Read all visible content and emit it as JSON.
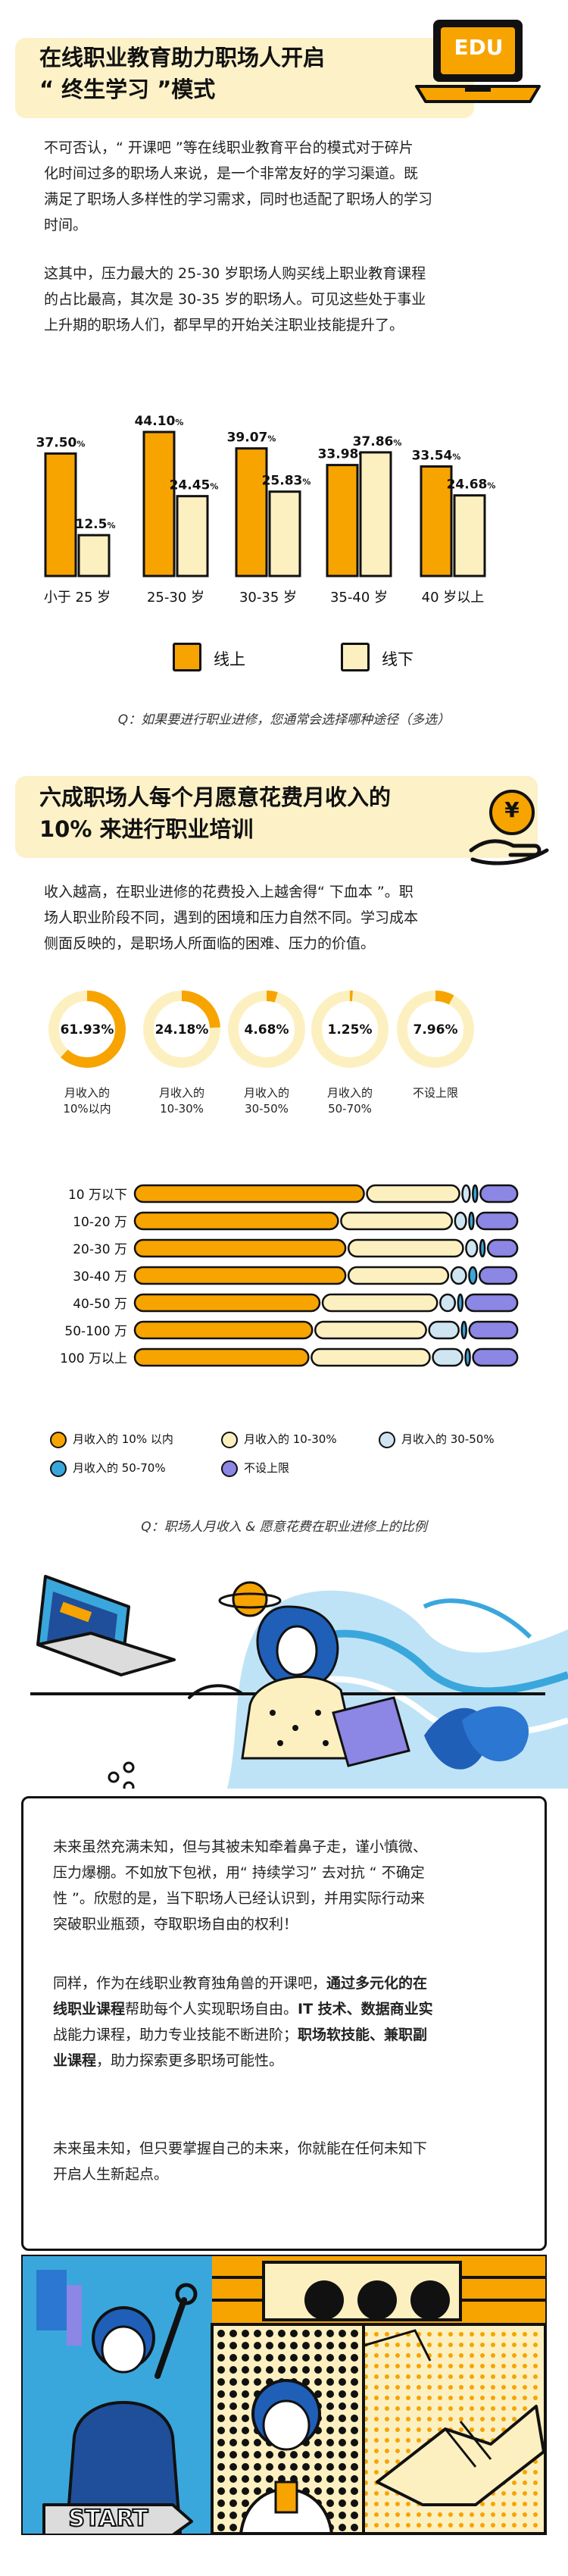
{
  "header1": {
    "title_line1": "在线职业教育助力职场人开启",
    "title_line2": "“ 终生学习 ”模式",
    "badge": "EDU"
  },
  "intro": {
    "p1_line1": "不可否认，“  开课吧  ”等在线职业教育平台的模式对于碎片",
    "p1_line2": "化时间过多的职场人来说，是一个非常友好的学习渠道。既",
    "p1_line3": "满足了职场人多样性的学习需求，同时也适配了职场人的学习",
    "p1_line4": "时间。",
    "p2_line1": "这其中，压力最大的  25-30  岁职场人购买线上职业教育课程",
    "p2_line2": "的占比最高，其次是  30-35  岁的职场人。可见这些处于事业",
    "p2_line3": "上升期的职场人们，都早早的开始关注职业技能提升了。"
  },
  "chart_data": [
    {
      "type": "bar",
      "categories": [
        "小于 25 岁",
        "25-30 岁",
        "30-35 岁",
        "35-40 岁",
        "40 岁以上"
      ],
      "series": [
        {
          "name": "线上",
          "values": [
            37.5,
            44.1,
            39.07,
            33.98,
            33.54
          ],
          "color": "#f7a400"
        },
        {
          "name": "线下",
          "values": [
            12.5,
            24.45,
            25.83,
            37.86,
            24.68
          ],
          "color": "#fdf0c0"
        }
      ],
      "value_labels": {
        "online": [
          "37.50",
          "44.10",
          "39.07",
          "33.98",
          "33.54"
        ],
        "offline": [
          "12.5",
          "24.45",
          "25.83",
          "37.86",
          "24.68"
        ]
      },
      "unit_suffix": "%",
      "ylim": [
        0,
        50
      ],
      "legend_position": "bottom",
      "caption": "Q：如果要进行职业进修，您通常会选择哪种途径（多选）"
    },
    {
      "type": "pie",
      "style": "donut",
      "categories": [
        "月收入的 10%以内",
        "月收入的 10-30%",
        "月收入的 30-50%",
        "月收入的 50-70%",
        "不设上限"
      ],
      "label_lines": [
        [
          "月收入的",
          "10%以内"
        ],
        [
          "月收入的",
          "10-30%"
        ],
        [
          "月收入的",
          "30-50%"
        ],
        [
          "月收入的",
          "50-70%"
        ],
        [
          "不设上限"
        ]
      ],
      "values": [
        61.93,
        24.18,
        4.68,
        1.25,
        7.96
      ],
      "value_labels": [
        "61.93%",
        "24.18%",
        "4.68%",
        "1.25%",
        "7.96%"
      ]
    },
    {
      "type": "bar",
      "orientation": "horizontal",
      "stacked": true,
      "normalized": true,
      "categories": [
        "10 万以下",
        "10-20 万",
        "20-30 万",
        "30-40 万",
        "40-50 万",
        "50-100 万",
        "100 万以上"
      ],
      "series": [
        {
          "name": "月收入的 10% 以内",
          "values": [
            62,
            55,
            57,
            57,
            50,
            48,
            47
          ],
          "color": "#f7a400"
        },
        {
          "name": "月收入的 10-30%",
          "values": [
            25,
            30,
            31,
            27,
            31,
            30,
            32
          ],
          "color": "#fdf0c0"
        },
        {
          "name": "月收入的 30-50%",
          "values": [
            2,
            3,
            3,
            4,
            4,
            8,
            8
          ],
          "color": "#cfe6f2"
        },
        {
          "name": "月收入的 50-70%",
          "values": [
            1,
            1,
            1,
            2,
            1,
            1,
            1
          ],
          "color": "#3aa7dc"
        },
        {
          "name": "不设上限",
          "values": [
            10,
            11,
            8,
            10,
            14,
            13,
            12
          ],
          "color": "#8c86e4"
        }
      ],
      "caption": "Q：职场人月收入 & 愿意花费在职业进修上的比例"
    }
  ],
  "header2": {
    "title_line1": "六成职场人每个月愿意花费月收入的",
    "title_line2": "10% 来进行职业培训",
    "coin_glyph": "¥"
  },
  "section2": {
    "p_line1": "收入越高，在职业进修的花费投入上越舍得“  下血本  ”。职",
    "p_line2": "场人职业阶段不同，遇到的困境和压力自然不同。学习成本",
    "p_line3": "侧面反映的，是职场人所面临的困难、压力的价值。"
  },
  "closing": {
    "p1_line1": "未来虽然充满未知，但与其被未知牵着鼻子走，谨小慎微、",
    "p1_line2": "压力爆棚。不如放下包袱，用“  持续学习”  去对抗 “ 不确定",
    "p1_line3": "性  ”。欣慰的是，当下职场人已经认识到，并用实际行动来",
    "p1_line4": "突破职业瓶颈，夺取职场自由的权利！",
    "p2_line1_a": "同样，作为在线职业教育独角兽的开课吧，",
    "p2_line1_b": "通过多元化的在",
    "p2_line2_a": "线职业课程",
    "p2_line2_b": "帮助每个人实现职场自由。",
    "p2_line2_c": "IT 技术、数据商业实",
    "p2_line3_a": "战能力课程",
    "p2_line3_b": "，助力专业技能不断进阶；",
    "p2_line3_c": "职场软技能、兼职副",
    "p2_line4_a": "业课程",
    "p2_line4_b": "，助力探索更多职场可能性。",
    "p3_line1": "未来虽未知，但只要掌握自己的未来，你就能在任何未知下",
    "p3_line2": "开启人生新起点。"
  },
  "bottom_art": {
    "start_label": "START"
  },
  "colors": {
    "orange": "#f7a400",
    "cream": "#fdf0c0",
    "light_blue": "#cfe6f2",
    "blue": "#3aa7dc",
    "purple": "#8c86e4",
    "highlight": "#fcf1c7",
    "ink": "#111111"
  }
}
